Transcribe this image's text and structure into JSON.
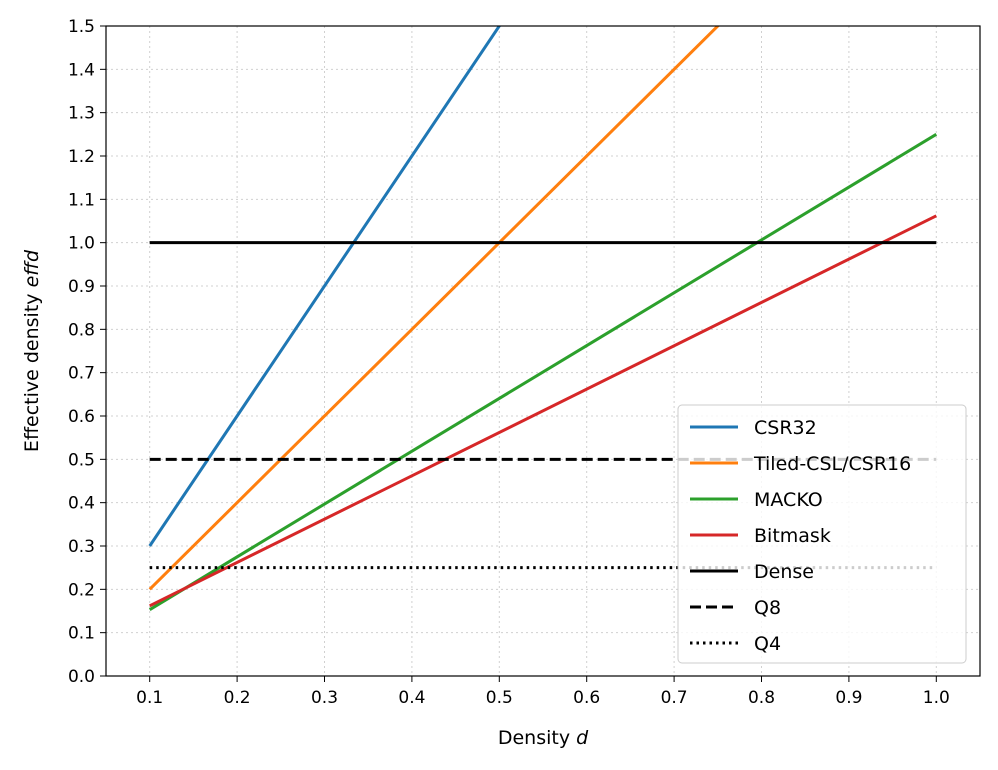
{
  "chart_data": {
    "type": "line",
    "title": "",
    "xlabel": "Density",
    "xlabel_var": "d",
    "ylabel": "Effective density",
    "ylabel_var": "effd",
    "xlim": [
      0.05,
      1.05
    ],
    "ylim": [
      0.0,
      1.5
    ],
    "xticks": [
      "0.1",
      "0.2",
      "0.3",
      "0.4",
      "0.5",
      "0.6",
      "0.7",
      "0.8",
      "0.9",
      "1.0"
    ],
    "yticks": [
      "0.0",
      "0.1",
      "0.2",
      "0.3",
      "0.4",
      "0.5",
      "0.6",
      "0.7",
      "0.8",
      "0.9",
      "1.0",
      "1.1",
      "1.2",
      "1.3",
      "1.4",
      "1.5"
    ],
    "grid": true,
    "legend_position": "lower-right",
    "series": [
      {
        "name": "CSR32",
        "color": "#1f77b4",
        "style": "solid",
        "x": [
          0.1,
          1.0
        ],
        "y": [
          0.3,
          3.0
        ]
      },
      {
        "name": "Tiled-CSL/CSR16",
        "color": "#ff7f0e",
        "style": "solid",
        "x": [
          0.1,
          1.0
        ],
        "y": [
          0.2,
          2.0
        ]
      },
      {
        "name": "MACKO",
        "color": "#2ca02c",
        "style": "solid",
        "x": [
          0.1,
          1.0
        ],
        "y": [
          0.153,
          1.25
        ]
      },
      {
        "name": "Bitmask",
        "color": "#d62728",
        "style": "solid",
        "x": [
          0.1,
          1.0
        ],
        "y": [
          0.162,
          1.062
        ]
      },
      {
        "name": "Dense",
        "color": "#000000",
        "style": "solid",
        "x": [
          0.1,
          1.0
        ],
        "y": [
          1.0,
          1.0
        ]
      },
      {
        "name": "Q8",
        "color": "#000000",
        "style": "dashed",
        "x": [
          0.1,
          1.0
        ],
        "y": [
          0.5,
          0.5
        ]
      },
      {
        "name": "Q4",
        "color": "#000000",
        "style": "dotted",
        "x": [
          0.1,
          1.0
        ],
        "y": [
          0.25,
          0.25
        ]
      }
    ]
  }
}
